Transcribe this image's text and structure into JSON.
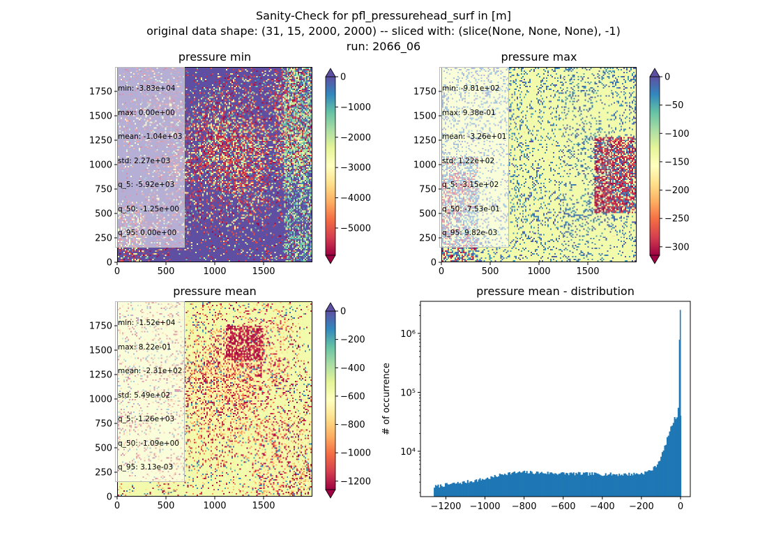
{
  "figure": {
    "title_line1": "Sanity-Check for pfl_pressurehead_surf in [m]",
    "title_line2": "original data shape: (31, 15, 2000, 2000) -- sliced with: (slice(None, None, None), -1)",
    "title_line3": "run: 2066_06"
  },
  "panels": {
    "min": {
      "title": "pressure min",
      "stats": [
        "min: -3.83e+04",
        "max: 0.00e+00",
        "mean: -1.04e+03",
        "std: 2.27e+03",
        "q_5: -5.92e+03",
        "q_50: -1.25e+00",
        "q_95: 0.00e+00"
      ],
      "cbar_ticks": [
        "0",
        "−1000",
        "−2000",
        "−3000",
        "−4000",
        "−5000"
      ],
      "vmin": -5900,
      "vmax": 0
    },
    "max": {
      "title": "pressure max",
      "stats": [
        "min: -9.81e+02",
        "max: 9.38e-01",
        "mean: -3.26e+01",
        "std: 1.22e+02",
        "q_5: -3.15e+02",
        "q_50: -7.53e-01",
        "q_95: 9.82e-03"
      ],
      "cbar_ticks": [
        "0",
        "−50",
        "−100",
        "−150",
        "−200",
        "−250",
        "−300"
      ],
      "vmin": -315,
      "vmax": 0
    },
    "mean": {
      "title": "pressure mean",
      "stats": [
        "min: -1.52e+04",
        "max: 8.22e-01",
        "mean: -2.31e+02",
        "std: 5.49e+02",
        "q_5: -1.26e+03",
        "q_50: -1.09e+00",
        "q_95: 3.13e-03"
      ],
      "cbar_ticks": [
        "0",
        "−200",
        "−400",
        "−600",
        "−800",
        "−1000",
        "−1200"
      ],
      "vmin": -1260,
      "vmax": 0
    },
    "hist": {
      "title": "pressure mean - distribution",
      "ylabel": "# of occurrence"
    }
  },
  "map_axes": {
    "x_ticks": [
      "0",
      "500",
      "1000",
      "1500"
    ],
    "y_ticks": [
      "0",
      "250",
      "500",
      "750",
      "1000",
      "1250",
      "1500",
      "1750"
    ]
  },
  "colors": {
    "spectral": [
      "#9e0142",
      "#d53e4f",
      "#f46d43",
      "#fdae61",
      "#fee08b",
      "#ffffbf",
      "#e6f598",
      "#abdda4",
      "#66c2a5",
      "#3288bd",
      "#5e4fa2"
    ],
    "hist_bar": "#1f77b4"
  },
  "chart_data": [
    {
      "type": "heatmap",
      "title": "pressure min",
      "xlim": [
        0,
        2000
      ],
      "ylim": [
        0,
        2000
      ],
      "colorbar_range": [
        -5900,
        0
      ],
      "colormap": "Spectral"
    },
    {
      "type": "heatmap",
      "title": "pressure max",
      "xlim": [
        0,
        2000
      ],
      "ylim": [
        0,
        2000
      ],
      "colorbar_range": [
        -315,
        0
      ],
      "colormap": "Spectral"
    },
    {
      "type": "heatmap",
      "title": "pressure mean",
      "xlim": [
        0,
        2000
      ],
      "ylim": [
        0,
        2000
      ],
      "colorbar_range": [
        -1260,
        0
      ],
      "colormap": "Spectral"
    },
    {
      "type": "bar",
      "title": "pressure mean - distribution",
      "ylabel": "# of occurrence",
      "yscale": "log",
      "xlim": [
        -1330,
        50
      ],
      "ylim": [
        1700,
        3500000
      ],
      "x_ticks": [
        "−1200",
        "−1000",
        "−800",
        "−600",
        "−400",
        "−200",
        "0"
      ],
      "y_ticks": [
        "10⁴",
        "10⁵",
        "10⁶"
      ],
      "x_tick_values": [
        -1200,
        -1000,
        -800,
        -600,
        -400,
        -200,
        0
      ],
      "y_tick_values": [
        10000,
        100000,
        1000000
      ],
      "bins_x": [
        -1260,
        -1200,
        -1100,
        -1000,
        -950,
        -900,
        -800,
        -700,
        -600,
        -500,
        -400,
        -300,
        -250,
        -200,
        -170,
        -140,
        -120,
        -100,
        -80,
        -60,
        -40,
        -30,
        -20,
        -12,
        -6,
        -3
      ],
      "bins_y": [
        2500,
        2700,
        3000,
        3400,
        3700,
        4200,
        4400,
        4300,
        4200,
        4150,
        4100,
        4050,
        4100,
        4200,
        4500,
        5000,
        6000,
        8000,
        12000,
        20000,
        30000,
        36000,
        38000,
        40000,
        2500000,
        40000
      ]
    }
  ]
}
